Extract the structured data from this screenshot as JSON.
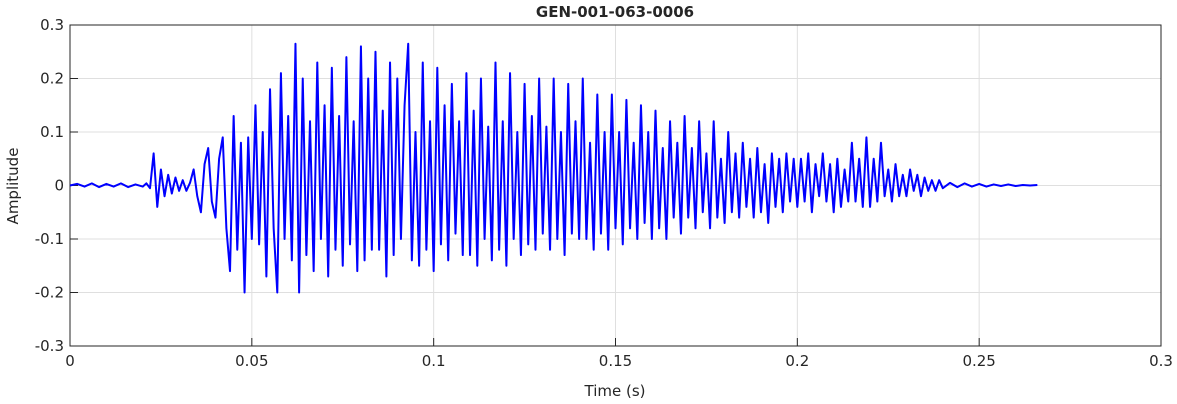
{
  "chart_data": {
    "type": "line",
    "title": "GEN-001-063-0006",
    "xlabel": "Time (s)",
    "ylabel": "Amplitude",
    "xlim": [
      0,
      0.3
    ],
    "xticks": [
      0,
      0.05,
      0.1,
      0.15,
      0.2,
      0.25,
      0.3
    ],
    "ylim": [
      -0.3,
      0.3
    ],
    "yticks": [
      -0.3,
      -0.2,
      -0.1,
      0,
      0.1,
      0.2,
      0.3
    ],
    "grid": true,
    "x": [
      0,
      0.002,
      0.004,
      0.006,
      0.008,
      0.01,
      0.012,
      0.014,
      0.016,
      0.018,
      0.02,
      0.021,
      0.022,
      0.023,
      0.024,
      0.025,
      0.026,
      0.027,
      0.028,
      0.029,
      0.03,
      0.031,
      0.032,
      0.033,
      0.034,
      0.035,
      0.036,
      0.037,
      0.038,
      0.039,
      0.04,
      0.041,
      0.042,
      0.043,
      0.044,
      0.045,
      0.046,
      0.047,
      0.048,
      0.049,
      0.05,
      0.051,
      0.052,
      0.053,
      0.054,
      0.055,
      0.056,
      0.057,
      0.058,
      0.059,
      0.06,
      0.061,
      0.062,
      0.063,
      0.064,
      0.065,
      0.066,
      0.067,
      0.068,
      0.069,
      0.07,
      0.071,
      0.072,
      0.073,
      0.074,
      0.075,
      0.076,
      0.077,
      0.078,
      0.079,
      0.08,
      0.081,
      0.082,
      0.083,
      0.084,
      0.085,
      0.086,
      0.087,
      0.088,
      0.089,
      0.09,
      0.091,
      0.092,
      0.093,
      0.094,
      0.095,
      0.096,
      0.097,
      0.098,
      0.099,
      0.1,
      0.101,
      0.102,
      0.103,
      0.104,
      0.105,
      0.106,
      0.107,
      0.108,
      0.109,
      0.11,
      0.111,
      0.112,
      0.113,
      0.114,
      0.115,
      0.116,
      0.117,
      0.118,
      0.119,
      0.12,
      0.121,
      0.122,
      0.123,
      0.124,
      0.125,
      0.126,
      0.127,
      0.128,
      0.129,
      0.13,
      0.131,
      0.132,
      0.133,
      0.134,
      0.135,
      0.136,
      0.137,
      0.138,
      0.139,
      0.14,
      0.141,
      0.142,
      0.143,
      0.144,
      0.145,
      0.146,
      0.147,
      0.148,
      0.149,
      0.15,
      0.151,
      0.152,
      0.153,
      0.154,
      0.155,
      0.156,
      0.157,
      0.158,
      0.159,
      0.16,
      0.161,
      0.162,
      0.163,
      0.164,
      0.165,
      0.166,
      0.167,
      0.168,
      0.169,
      0.17,
      0.171,
      0.172,
      0.173,
      0.174,
      0.175,
      0.176,
      0.177,
      0.178,
      0.179,
      0.18,
      0.181,
      0.182,
      0.183,
      0.184,
      0.185,
      0.186,
      0.187,
      0.188,
      0.189,
      0.19,
      0.191,
      0.192,
      0.193,
      0.194,
      0.195,
      0.196,
      0.197,
      0.198,
      0.199,
      0.2,
      0.201,
      0.202,
      0.203,
      0.204,
      0.205,
      0.206,
      0.207,
      0.208,
      0.209,
      0.21,
      0.211,
      0.212,
      0.213,
      0.214,
      0.215,
      0.216,
      0.217,
      0.218,
      0.219,
      0.22,
      0.221,
      0.222,
      0.223,
      0.224,
      0.225,
      0.226,
      0.227,
      0.228,
      0.229,
      0.23,
      0.231,
      0.232,
      0.233,
      0.234,
      0.235,
      0.236,
      0.237,
      0.238,
      0.239,
      0.24,
      0.242,
      0.244,
      0.246,
      0.248,
      0.25,
      0.252,
      0.254,
      0.256,
      0.258,
      0.26,
      0.262,
      0.264,
      0.266
    ],
    "series": [
      {
        "color": "#0000ff",
        "values": [
          0,
          0.003,
          -0.002,
          0.004,
          -0.003,
          0.003,
          -0.002,
          0.004,
          -0.003,
          0.002,
          -0.002,
          0.004,
          -0.005,
          0.06,
          -0.04,
          0.03,
          -0.02,
          0.02,
          -0.015,
          0.015,
          -0.01,
          0.01,
          -0.01,
          0.005,
          0.03,
          -0.02,
          -0.05,
          0.04,
          0.07,
          -0.03,
          -0.06,
          0.05,
          0.09,
          -0.08,
          -0.16,
          0.13,
          -0.12,
          0.08,
          -0.2,
          0.09,
          -0.1,
          0.15,
          -0.11,
          0.1,
          -0.17,
          0.18,
          -0.08,
          -0.2,
          0.21,
          -0.1,
          0.13,
          -0.14,
          0.265,
          -0.2,
          0.2,
          -0.13,
          0.12,
          -0.16,
          0.23,
          -0.1,
          0.15,
          -0.17,
          0.22,
          -0.12,
          0.13,
          -0.15,
          0.24,
          -0.11,
          0.12,
          -0.16,
          0.26,
          -0.14,
          0.2,
          -0.12,
          0.25,
          -0.12,
          0.14,
          -0.17,
          0.23,
          -0.13,
          0.2,
          -0.1,
          0.15,
          0.265,
          -0.14,
          0.1,
          -0.15,
          0.23,
          -0.12,
          0.12,
          -0.16,
          0.22,
          -0.11,
          0.15,
          -0.14,
          0.19,
          -0.09,
          0.12,
          -0.13,
          0.21,
          -0.13,
          0.14,
          -0.15,
          0.2,
          -0.1,
          0.11,
          -0.14,
          0.23,
          -0.12,
          0.12,
          -0.15,
          0.21,
          -0.1,
          0.1,
          -0.13,
          0.19,
          -0.11,
          0.13,
          -0.12,
          0.2,
          -0.09,
          0.11,
          -0.12,
          0.2,
          -0.1,
          0.1,
          -0.13,
          0.19,
          -0.09,
          0.12,
          -0.1,
          0.2,
          -0.1,
          0.08,
          -0.12,
          0.17,
          -0.09,
          0.1,
          -0.12,
          0.17,
          -0.08,
          0.1,
          -0.11,
          0.16,
          -0.08,
          0.08,
          -0.1,
          0.15,
          -0.07,
          0.1,
          -0.1,
          0.14,
          -0.08,
          0.07,
          -0.1,
          0.12,
          -0.06,
          0.08,
          -0.09,
          0.13,
          -0.06,
          0.07,
          -0.08,
          0.12,
          -0.05,
          0.06,
          -0.08,
          0.12,
          -0.06,
          0.05,
          -0.07,
          0.1,
          -0.05,
          0.06,
          -0.06,
          0.08,
          -0.04,
          0.05,
          -0.06,
          0.07,
          -0.05,
          0.04,
          -0.07,
          0.06,
          -0.04,
          0.05,
          -0.05,
          0.06,
          -0.03,
          0.05,
          -0.04,
          0.05,
          -0.03,
          0.06,
          -0.05,
          0.04,
          -0.02,
          0.06,
          -0.03,
          0.04,
          -0.05,
          0.05,
          -0.04,
          0.03,
          -0.03,
          0.08,
          -0.03,
          0.05,
          -0.04,
          0.09,
          -0.04,
          0.05,
          -0.03,
          0.08,
          -0.02,
          0.03,
          -0.03,
          0.04,
          -0.02,
          0.02,
          -0.02,
          0.03,
          -0.01,
          0.02,
          -0.02,
          0.015,
          -0.01,
          0.01,
          -0.01,
          0.01,
          -0.005,
          0.005,
          -0.003,
          0.004,
          -0.002,
          0.003,
          -0.002,
          0.002,
          -0.001,
          0.002,
          -0.001,
          0.001,
          0,
          0.001
        ]
      }
    ]
  }
}
